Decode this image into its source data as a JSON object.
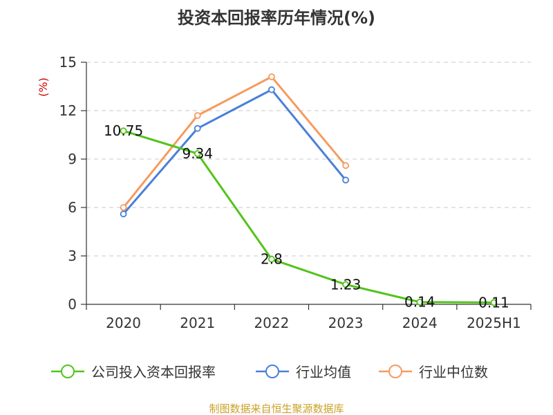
{
  "chart_data": {
    "type": "line",
    "title": "投资本回报率历年情况(%)",
    "unit": "(%)",
    "categories": [
      "2020",
      "2021",
      "2022",
      "2023",
      "2024",
      "2025H1"
    ],
    "ylim": [
      0,
      15
    ],
    "yticks": [
      "0",
      "3",
      "6",
      "9",
      "12",
      "15"
    ],
    "grid": true,
    "legend_position": "bottom",
    "series": [
      {
        "name": "公司投入资本回报率",
        "color": "#52c41a",
        "values": [
          10.75,
          9.34,
          2.8,
          1.23,
          0.14,
          0.11
        ],
        "labels": [
          "10.75",
          "9.34",
          "2.8",
          "1.23",
          "0.14",
          "0.11"
        ]
      },
      {
        "name": "行业均值",
        "color": "#4a7fd8",
        "values": [
          5.6,
          10.9,
          13.3,
          7.7,
          null,
          null
        ]
      },
      {
        "name": "行业中位数",
        "color": "#f79a5f",
        "values": [
          6.0,
          11.7,
          14.1,
          8.6,
          null,
          null
        ]
      }
    ],
    "source": "制图数据来自恒生聚源数据库"
  }
}
